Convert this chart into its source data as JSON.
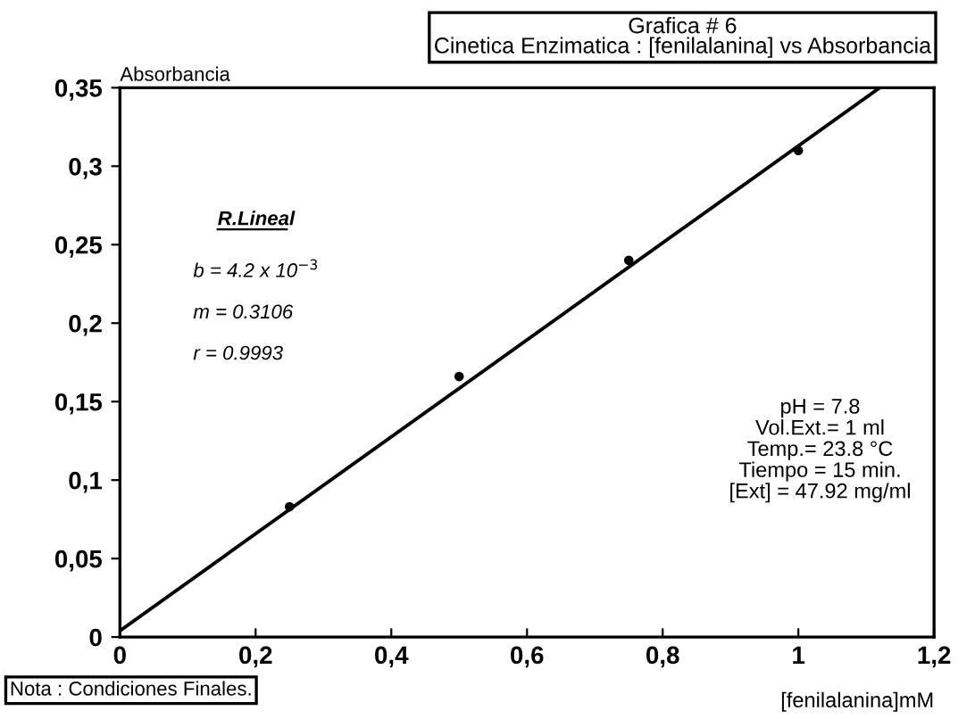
{
  "chart_data": {
    "type": "scatter",
    "title": "Grafica # 6",
    "subtitle": "Cinetica Enzimatica : [fenilalanina] vs Absorbancia",
    "xlabel": "[fenilalanina]mM",
    "ylabel": "Absorbancia",
    "series": [
      {
        "color": "#000000",
        "x": [
          0.25,
          0.5,
          0.75,
          1.0
        ],
        "values": [
          0.083,
          0.166,
          0.24,
          0.31
        ],
        "marker": "circle"
      },
      {
        "type": "line",
        "color": "#000000",
        "x": [
          0,
          1.12
        ],
        "values": [
          0.004,
          0.35
        ],
        "marker": "none",
        "line_style": "solid"
      }
    ],
    "xlim": [
      0,
      1.2
    ],
    "xticks": [
      {
        "value": 0,
        "label": "0"
      },
      {
        "value": 0.2,
        "label": "0,2"
      },
      {
        "value": 0.4,
        "label": "0,4"
      },
      {
        "value": 0.6,
        "label": "0,6"
      },
      {
        "value": 0.8,
        "label": "0,8"
      },
      {
        "value": 1,
        "label": "1"
      },
      {
        "value": 1.2,
        "label": "1,2"
      }
    ],
    "ylim": [
      0,
      0.35
    ],
    "yticks": [
      {
        "value": 0,
        "label": "0"
      },
      {
        "value": 0.05,
        "label": "0,05"
      },
      {
        "value": 0.1,
        "label": "0,1"
      },
      {
        "value": 0.15,
        "label": "0,15"
      },
      {
        "value": 0.2,
        "label": "0,2"
      },
      {
        "value": 0.25,
        "label": "0,25"
      },
      {
        "value": 0.3,
        "label": "0,3"
      },
      {
        "value": 0.35,
        "label": "0,35"
      }
    ],
    "grid": false,
    "legend": false,
    "annotations": [
      "R.Lineal",
      "b = 4.2 x 10$^{−3}$",
      "m = 0.3106",
      "r = 0.9993",
      "pH = 7.8\nVol.Ext.= 1 ml\nTemp.= 23.8 °C\nTiempo = 15 min.\n[Ext] = 47.92 mg/ml",
      "Nota : Condiciones Finales."
    ]
  }
}
